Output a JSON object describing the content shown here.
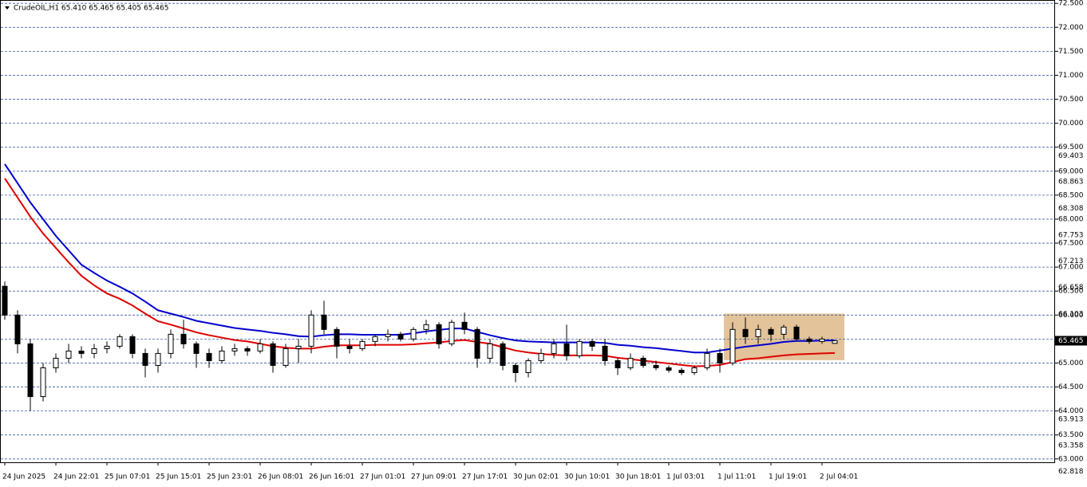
{
  "chart_data": {
    "type": "candlestick",
    "title": "CrudeOIL,H1  65.410 65.465 65.405 65.465",
    "categories": [
      "24 Jun 2025",
      null,
      null,
      null,
      "24 Jun 22:01",
      null,
      null,
      null,
      "25 Jun 07:01",
      null,
      null,
      null,
      "25 Jun 15:01",
      null,
      null,
      null,
      "25 Jun 23:01",
      null,
      null,
      null,
      "26 Jun 08:01",
      null,
      null,
      null,
      "26 Jun 16:01",
      null,
      null,
      null,
      "27 Jun 01:01",
      null,
      null,
      null,
      "27 Jun 09:01",
      null,
      null,
      null,
      "27 Jun 17:01",
      null,
      null,
      null,
      "30 Jun 02:01",
      null,
      null,
      null,
      "30 Jun 10:01",
      null,
      null,
      null,
      "30 Jun 18:01",
      null,
      null,
      null,
      "1 Jul 03:01",
      null,
      null,
      null,
      "1 Jul 11:01",
      null,
      null,
      null,
      "1 Jul 19:01",
      null,
      null,
      null,
      "2 Jul 04:01",
      null
    ],
    "candles": [
      [
        66.6,
        66.7,
        65.9,
        66.0
      ],
      [
        66.0,
        66.1,
        65.2,
        65.4
      ],
      [
        65.4,
        65.5,
        64.0,
        64.3
      ],
      [
        64.3,
        65.0,
        64.2,
        64.9
      ],
      [
        64.9,
        65.2,
        64.8,
        65.1
      ],
      [
        65.1,
        65.4,
        65.0,
        65.25
      ],
      [
        65.25,
        65.35,
        65.1,
        65.2
      ],
      [
        65.2,
        65.4,
        65.1,
        65.3
      ],
      [
        65.3,
        65.45,
        65.2,
        65.35
      ],
      [
        65.35,
        65.6,
        65.3,
        65.55
      ],
      [
        65.55,
        65.6,
        65.1,
        65.2
      ],
      [
        65.2,
        65.3,
        64.7,
        64.95
      ],
      [
        64.95,
        65.3,
        64.8,
        65.2
      ],
      [
        65.2,
        65.7,
        65.1,
        65.6
      ],
      [
        65.6,
        65.9,
        65.3,
        65.4
      ],
      [
        65.4,
        65.45,
        64.9,
        65.2
      ],
      [
        65.2,
        65.3,
        64.9,
        65.05
      ],
      [
        65.05,
        65.35,
        65.0,
        65.25
      ],
      [
        65.25,
        65.4,
        65.15,
        65.3
      ],
      [
        65.3,
        65.35,
        65.15,
        65.25
      ],
      [
        65.25,
        65.5,
        65.2,
        65.4
      ],
      [
        65.4,
        65.45,
        64.8,
        64.95
      ],
      [
        64.95,
        65.4,
        64.9,
        65.3
      ],
      [
        65.3,
        65.5,
        65.0,
        65.35
      ],
      [
        65.35,
        66.1,
        65.2,
        66.0
      ],
      [
        66.0,
        66.3,
        65.6,
        65.7
      ],
      [
        65.7,
        65.75,
        65.1,
        65.35
      ],
      [
        65.35,
        65.5,
        65.2,
        65.3
      ],
      [
        65.3,
        65.5,
        65.25,
        65.45
      ],
      [
        65.45,
        65.6,
        65.35,
        65.55
      ],
      [
        65.55,
        65.7,
        65.45,
        65.6
      ],
      [
        65.6,
        65.65,
        65.45,
        65.5
      ],
      [
        65.5,
        65.75,
        65.45,
        65.7
      ],
      [
        65.7,
        65.9,
        65.6,
        65.8
      ],
      [
        65.8,
        65.85,
        65.3,
        65.4
      ],
      [
        65.4,
        65.9,
        65.35,
        65.85
      ],
      [
        65.85,
        66.05,
        65.6,
        65.7
      ],
      [
        65.7,
        65.75,
        64.9,
        65.1
      ],
      [
        65.1,
        65.5,
        65.0,
        65.4
      ],
      [
        65.4,
        65.45,
        64.85,
        64.95
      ],
      [
        64.95,
        65.0,
        64.6,
        64.8
      ],
      [
        64.8,
        65.1,
        64.7,
        65.05
      ],
      [
        65.05,
        65.3,
        65.0,
        65.2
      ],
      [
        65.2,
        65.5,
        65.1,
        65.4
      ],
      [
        65.4,
        65.8,
        65.05,
        65.15
      ],
      [
        65.15,
        65.5,
        65.1,
        65.45
      ],
      [
        65.45,
        65.5,
        65.25,
        65.35
      ],
      [
        65.35,
        65.5,
        64.95,
        65.05
      ],
      [
        65.05,
        65.1,
        64.75,
        64.9
      ],
      [
        64.9,
        65.2,
        64.85,
        65.1
      ],
      [
        65.1,
        65.15,
        64.9,
        64.95
      ],
      [
        64.95,
        65.05,
        64.85,
        64.9
      ],
      [
        64.9,
        64.95,
        64.8,
        64.85
      ],
      [
        64.85,
        64.9,
        64.75,
        64.8
      ],
      [
        64.8,
        64.95,
        64.75,
        64.9
      ],
      [
        64.9,
        65.3,
        64.85,
        65.2
      ],
      [
        65.2,
        65.3,
        64.8,
        65.0
      ],
      [
        65.0,
        65.85,
        64.95,
        65.7
      ],
      [
        65.7,
        65.95,
        65.4,
        65.55
      ],
      [
        65.55,
        65.8,
        65.4,
        65.7
      ],
      [
        65.7,
        65.75,
        65.45,
        65.6
      ],
      [
        65.6,
        65.8,
        65.5,
        65.75
      ],
      [
        65.75,
        65.8,
        65.45,
        65.5
      ],
      [
        65.5,
        65.55,
        65.4,
        65.45
      ],
      [
        65.45,
        65.55,
        65.4,
        65.5
      ],
      [
        65.41,
        65.465,
        65.405,
        65.465
      ]
    ],
    "series": [
      {
        "color": "#0000cd",
        "values": [
          69.15,
          68.75,
          68.35,
          68.0,
          67.65,
          67.35,
          67.05,
          66.88,
          66.72,
          66.59,
          66.45,
          66.28,
          66.1,
          66.03,
          65.96,
          65.88,
          65.83,
          65.78,
          65.73,
          65.7,
          65.67,
          65.63,
          65.6,
          65.56,
          65.55,
          65.58,
          65.6,
          65.6,
          65.59,
          65.59,
          65.59,
          65.59,
          65.62,
          65.66,
          65.69,
          65.72,
          65.72,
          65.65,
          65.58,
          65.52,
          65.47,
          65.45,
          65.44,
          65.43,
          65.43,
          65.43,
          65.43,
          65.42,
          65.38,
          65.36,
          65.33,
          65.31,
          65.28,
          65.25,
          65.22,
          65.22,
          65.26,
          65.3,
          65.34,
          65.37,
          65.4,
          65.44,
          65.46,
          65.46,
          65.47,
          65.47
        ]
      },
      {
        "color": "#e00000",
        "values": [
          68.85,
          68.45,
          68.05,
          67.7,
          67.4,
          67.1,
          66.82,
          66.62,
          66.45,
          66.34,
          66.2,
          66.03,
          65.87,
          65.8,
          65.72,
          65.64,
          65.58,
          65.53,
          65.48,
          65.45,
          65.4,
          65.35,
          65.32,
          65.3,
          65.3,
          65.34,
          65.37,
          65.37,
          65.37,
          65.38,
          65.38,
          65.38,
          65.39,
          65.41,
          65.43,
          65.46,
          65.48,
          65.44,
          65.4,
          65.33,
          65.26,
          65.22,
          65.19,
          65.17,
          65.16,
          65.16,
          65.16,
          65.15,
          65.11,
          65.08,
          65.05,
          65.02,
          64.99,
          64.96,
          64.93,
          64.94,
          64.96,
          65.02,
          65.08,
          65.1,
          65.13,
          65.16,
          65.18,
          65.19,
          65.2,
          65.21
        ]
      }
    ],
    "ylim": [
      62.93,
      72.57
    ],
    "yticks": [
      {
        "value": 63.0,
        "label": "63.000"
      },
      {
        "value": 63.5,
        "label": "63.500"
      },
      {
        "value": 64.0,
        "label": "64.000"
      },
      {
        "value": 64.5,
        "label": "64.500"
      },
      {
        "value": 65.0,
        "label": "65.000"
      },
      {
        "value": 65.5,
        "label": "65.500"
      },
      {
        "value": 66.0,
        "label": "66.000"
      },
      {
        "value": 66.5,
        "label": "66.500"
      },
      {
        "value": 67.0,
        "label": "67.000"
      },
      {
        "value": 67.5,
        "label": "67.500"
      },
      {
        "value": 68.0,
        "label": "68.000"
      },
      {
        "value": 68.5,
        "label": "68.500"
      },
      {
        "value": 69.0,
        "label": "69.000"
      },
      {
        "value": 69.5,
        "label": "69.500"
      },
      {
        "value": 70.0,
        "label": "70.000"
      },
      {
        "value": 70.5,
        "label": "70.500"
      },
      {
        "value": 71.0,
        "label": "71.000"
      },
      {
        "value": 71.5,
        "label": "71.500"
      },
      {
        "value": 72.0,
        "label": "72.000"
      },
      {
        "value": 72.5,
        "label": "72.500"
      }
    ],
    "levels": [
      {
        "value": 69.403,
        "label": "69.403"
      },
      {
        "value": 68.863,
        "label": "68.863"
      },
      {
        "value": 68.308,
        "label": "68.308"
      },
      {
        "value": 67.753,
        "label": "67.753"
      },
      {
        "value": 67.213,
        "label": "67.213"
      },
      {
        "value": 66.658,
        "label": "66.658"
      },
      {
        "value": 66.103,
        "label": "66.103"
      },
      {
        "value": 63.913,
        "label": "63.913"
      },
      {
        "value": 63.358,
        "label": "63.358"
      },
      {
        "value": 62.818,
        "label": "62.818"
      }
    ],
    "last_price": {
      "value": 65.465,
      "label": "65.465"
    },
    "zone": {
      "ylim": [
        65.06,
        66.03
      ],
      "color": "#deb887"
    },
    "grid": true
  }
}
